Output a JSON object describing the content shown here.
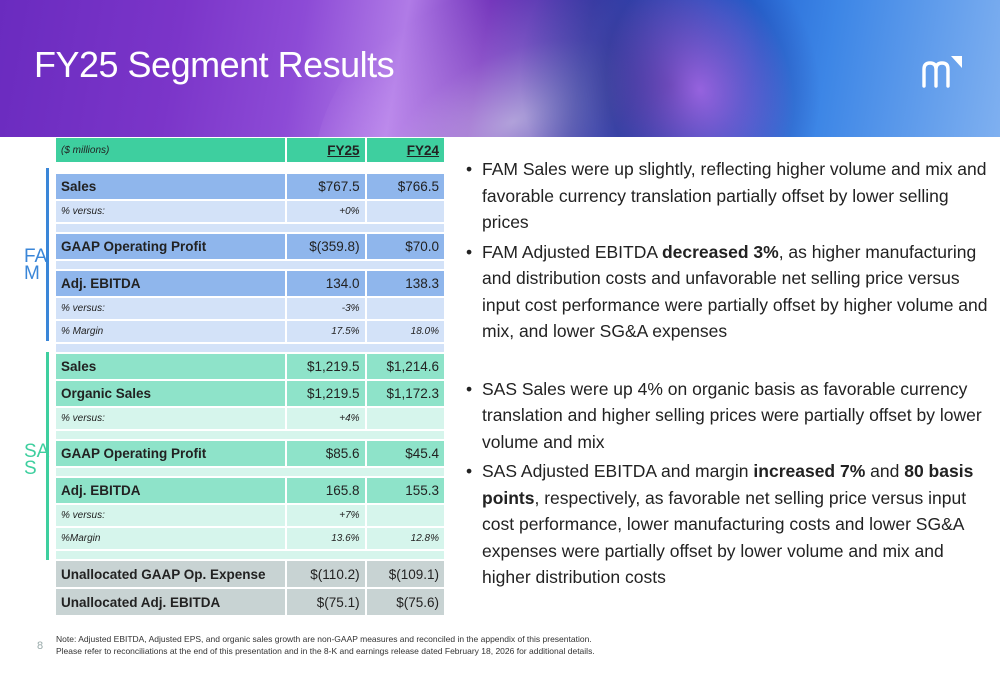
{
  "header": {
    "title": "FY25 Segment Results",
    "logo": "m-logo-icon"
  },
  "segments": {
    "fam_label": "FAM",
    "sas_label": "SAS",
    "fam_color": "#3a86d8",
    "sas_color": "#3ecf9f"
  },
  "table": {
    "units": "($ millions)",
    "col1": "FY25",
    "col2": "FY24",
    "fam_rows": {
      "sales": {
        "label": "Sales",
        "fy25": "$767.5",
        "fy24": "$766.5"
      },
      "sales_vs": {
        "label": "% versus:",
        "fy25": "+0%",
        "fy24": ""
      },
      "gaap": {
        "label": "GAAP Operating Profit",
        "fy25": "$(359.8)",
        "fy24": "$70.0"
      },
      "ebitda": {
        "label": "Adj. EBITDA",
        "fy25": "134.0",
        "fy24": "138.3"
      },
      "ebitda_vs": {
        "label": "% versus:",
        "fy25": "-3%",
        "fy24": ""
      },
      "margin": {
        "label": "% Margin",
        "fy25": "17.5%",
        "fy24": "18.0%"
      }
    },
    "sas_rows": {
      "sales": {
        "label": "Sales",
        "fy25": "$1,219.5",
        "fy24": "$1,214.6"
      },
      "organic": {
        "label": "Organic Sales",
        "fy25": "$1,219.5",
        "fy24": "$1,172.3"
      },
      "organic_vs": {
        "label": "% versus:",
        "fy25": "+4%",
        "fy24": ""
      },
      "gaap": {
        "label": "GAAP Operating Profit",
        "fy25": "$85.6",
        "fy24": "$45.4"
      },
      "ebitda": {
        "label": "Adj. EBITDA",
        "fy25": "165.8",
        "fy24": "155.3"
      },
      "ebitda_vs": {
        "label": "% versus:",
        "fy25": "+7%",
        "fy24": ""
      },
      "margin": {
        "label": "%Margin",
        "fy25": "13.6%",
        "fy24": "12.8%"
      }
    },
    "unallocated": {
      "gaap": {
        "label": "Unallocated GAAP Op. Expense",
        "fy25": "$(110.2)",
        "fy24": "$(109.1)"
      },
      "ebitda": {
        "label": "Unallocated Adj. EBITDA",
        "fy25": "$(75.1)",
        "fy24": "$(75.6)"
      }
    }
  },
  "bullets": {
    "b1": "FAM Sales were up slightly, reflecting higher volume and mix and favorable currency translation partially offset by lower selling prices",
    "b2_pre": "FAM Adjusted EBITDA ",
    "b2_bold": "decreased 3%",
    "b2_post": ", as higher manufacturing and distribution costs and unfavorable net selling price versus input cost performance were partially offset by higher volume and mix, and lower SG&A expenses",
    "b3": "SAS Sales were up 4% on organic basis as favorable currency translation and higher selling prices were partially offset by lower volume and mix",
    "b4_pre": "SAS Adjusted EBITDA and margin ",
    "b4_bold1": "increased 7%",
    "b4_mid": " and ",
    "b4_bold2": "80 basis points",
    "b4_post": ", respectively, as favorable net selling price versus input cost performance, lower manufacturing costs and lower SG&A expenses were partially offset by lower volume and mix and higher distribution costs"
  },
  "footer": {
    "page_number": "8",
    "note_line1": "Note: Adjusted EBITDA, Adjusted EPS, and organic sales growth are non-GAAP measures and reconciled in the appendix of this presentation.",
    "note_line2": "Please refer to reconciliations at the end of this presentation and in the 8-K and earnings release dated February 18, 2026 for additional details."
  }
}
